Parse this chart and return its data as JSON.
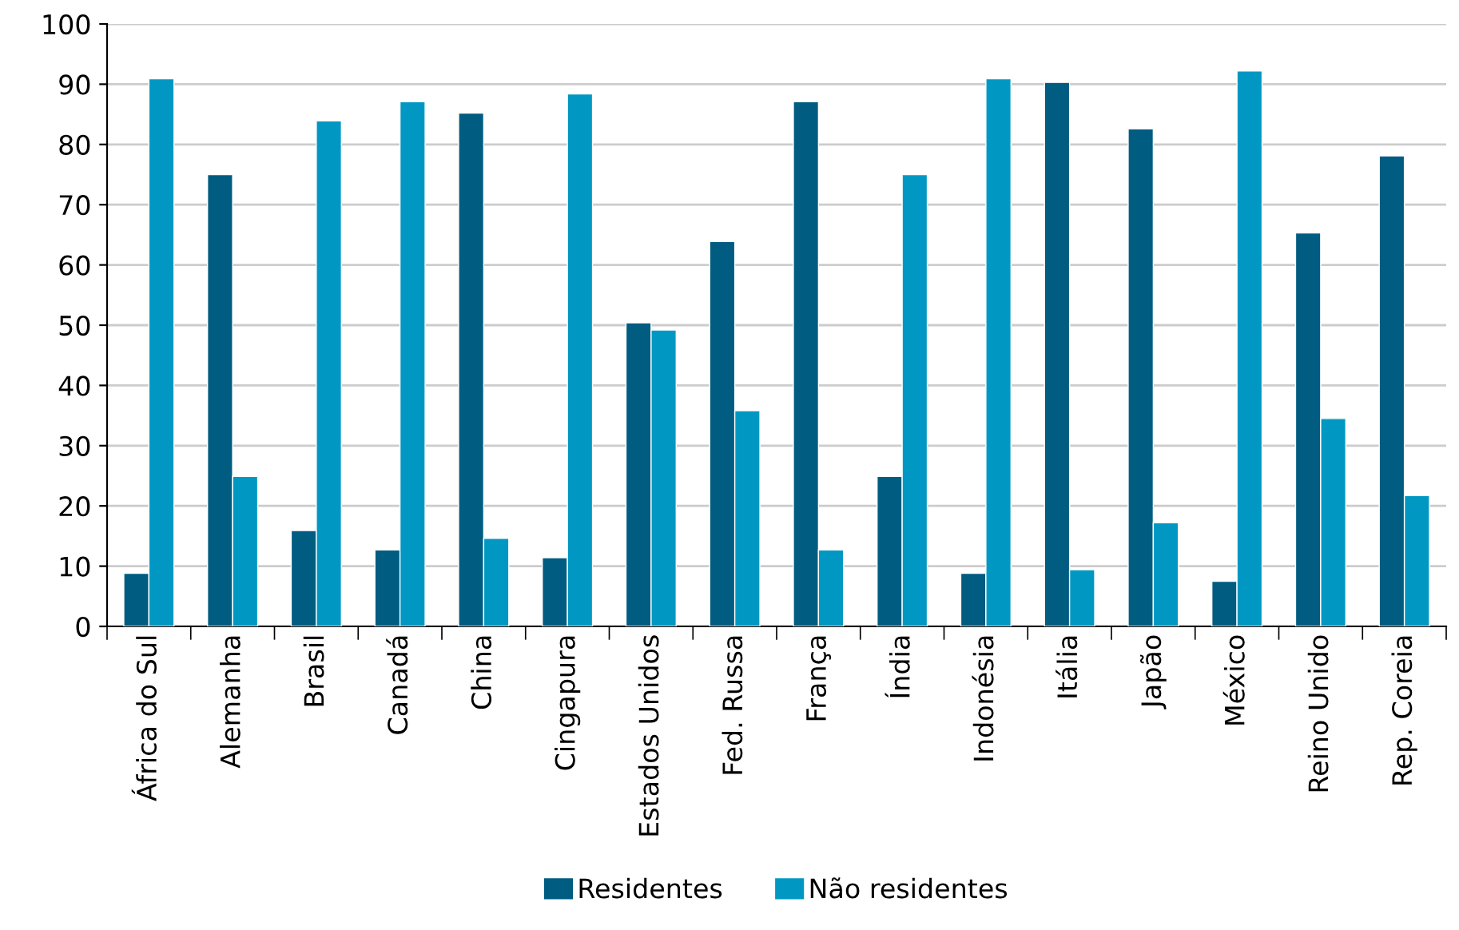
{
  "chart_data": {
    "type": "bar",
    "categories": [
      "África do Sul",
      "Alemanha",
      "Brasil",
      "Canadá",
      "China",
      "Cingapura",
      "Estados Unidos",
      "Fed. Russa",
      "França",
      "Índia",
      "Indonésia",
      "Itália",
      "Japão",
      "México",
      "Reino Unido",
      "Rep. Coreia"
    ],
    "series": [
      {
        "name": "Residentes",
        "color": "#005c80",
        "values": [
          8.8,
          75.0,
          15.9,
          12.7,
          85.2,
          11.4,
          50.4,
          63.9,
          87.1,
          24.9,
          8.8,
          90.3,
          82.6,
          7.5,
          65.3,
          78.1
        ]
      },
      {
        "name": "Não residentes",
        "color": "#0098c3",
        "values": [
          90.9,
          24.9,
          83.9,
          87.1,
          14.6,
          88.4,
          49.2,
          35.8,
          12.7,
          75.0,
          90.9,
          9.4,
          17.2,
          92.2,
          34.5,
          21.7
        ]
      }
    ],
    "ylim": [
      0,
      100
    ],
    "yticks": [
      0,
      10,
      20,
      30,
      40,
      50,
      60,
      70,
      80,
      90,
      100
    ],
    "grid": "y",
    "legend": "bottom"
  }
}
